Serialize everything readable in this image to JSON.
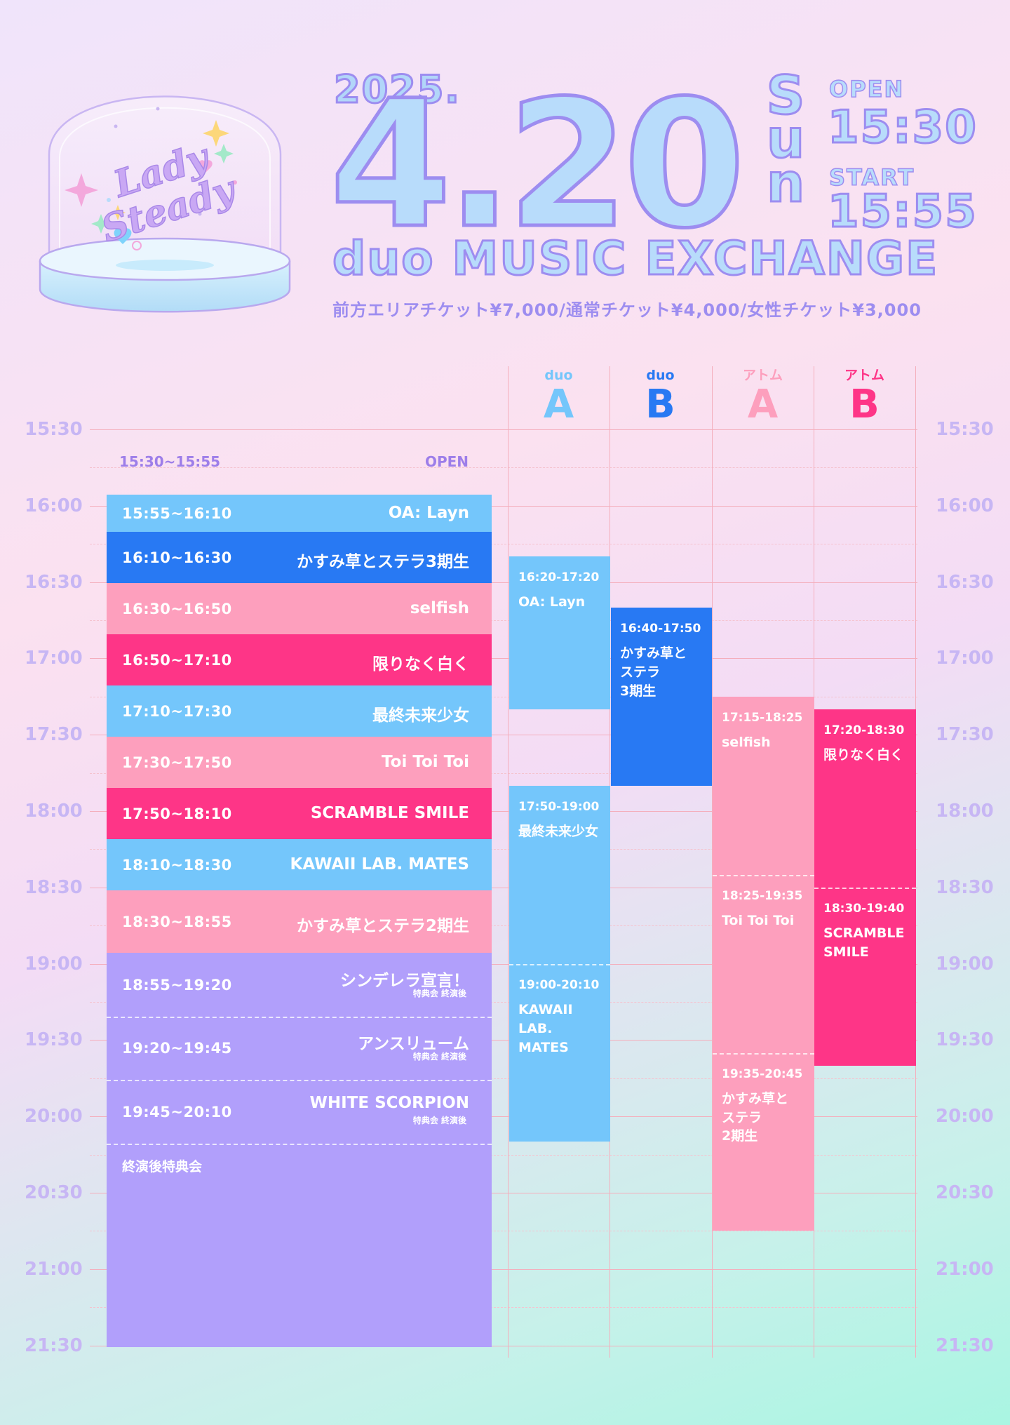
{
  "logo_text": "Lady Steady",
  "header": {
    "year": "2025.",
    "month_day": "4.20",
    "day_of_week": [
      "S",
      "u",
      "n"
    ],
    "open_label": "OPEN",
    "open_time": "15:30",
    "start_label": "START",
    "start_time": "15:55",
    "venue": "duo MUSIC EXCHANGE",
    "tickets": "前方エリアチケット¥7,000/通常チケット¥4,000/女性チケット¥3,000"
  },
  "colors": {
    "sky": "#74c6fb",
    "blue": "#2879f3",
    "pink": "#fd9fbd",
    "hot_pink": "#fe3587",
    "purple": "#b19ffb",
    "grid": "#f4aebc",
    "time_label": "#c7b6f4"
  },
  "time_labels": [
    "15:30",
    "16:00",
    "16:30",
    "17:00",
    "17:30",
    "18:00",
    "18:30",
    "19:00",
    "19:30",
    "20:00",
    "20:30",
    "21:00",
    "21:30"
  ],
  "stages": [
    {
      "venue": "duo",
      "name": "A",
      "color": "#74c6fb"
    },
    {
      "venue": "duo",
      "name": "B",
      "color": "#2879f3"
    },
    {
      "venue": "アトム",
      "name": "A",
      "color": "#fd9fbd"
    },
    {
      "venue": "アトム",
      "name": "B",
      "color": "#fe3587"
    }
  ],
  "open_row": {
    "time": "15:30~15:55",
    "label": "OPEN"
  },
  "main_stage": [
    {
      "time": "15:55~16:10",
      "name": "OA: Layn",
      "color": "sky"
    },
    {
      "time": "16:10~16:30",
      "name": "かすみ草とステラ3期生",
      "color": "blue"
    },
    {
      "time": "16:30~16:50",
      "name": "selfish",
      "color": "pink"
    },
    {
      "time": "16:50~17:10",
      "name": "限りなく白く",
      "color": "hot"
    },
    {
      "time": "17:10~17:30",
      "name": "最終未来少女",
      "color": "sky"
    },
    {
      "time": "17:30~17:50",
      "name": "Toi Toi Toi",
      "color": "pink"
    },
    {
      "time": "17:50~18:10",
      "name": "SCRAMBLE SMILE",
      "color": "hot"
    },
    {
      "time": "18:10~18:30",
      "name": "KAWAII LAB. MATES",
      "color": "sky"
    },
    {
      "time": "18:30~18:55",
      "name": "かすみ草とステラ2期生",
      "color": "pink"
    },
    {
      "time": "18:55~19:20",
      "name": "シンデレラ宣言！",
      "note": "特典会 終演後",
      "color": "purple"
    },
    {
      "time": "19:20~19:45",
      "name": "アンスリューム",
      "note": "特典会 終演後",
      "color": "purple"
    },
    {
      "time": "19:45~20:10",
      "name": "WHITE SCORPION",
      "note": "特典会 終演後",
      "color": "purple"
    },
    {
      "time": "",
      "name": "終演後特典会",
      "color": "purple"
    }
  ],
  "stage_sessions": {
    "duo_a": [
      {
        "time": "16:20-17:20",
        "name": "OA: Layn"
      },
      {
        "time": "17:50-19:00",
        "name": "最終未来少女"
      },
      {
        "time": "19:00-20:10",
        "name": "KAWAII LAB. MATES",
        "lines": [
          "KAWAII",
          "LAB.",
          "MATES"
        ]
      }
    ],
    "duo_b": [
      {
        "time": "16:40-17:50",
        "name": "かすみ草とステラ3期生",
        "lines": [
          "かすみ草と",
          "ステラ",
          "3期生"
        ]
      }
    ],
    "atom_a": [
      {
        "time": "17:15-18:25",
        "name": "selfish"
      },
      {
        "time": "18:25-19:35",
        "name": "Toi Toi Toi"
      },
      {
        "time": "19:35-20:45",
        "name": "かすみ草とステラ2期生",
        "lines": [
          "かすみ草と",
          "ステラ",
          "2期生"
        ]
      }
    ],
    "atom_b": [
      {
        "time": "17:20-18:30",
        "name": "限りなく白く"
      },
      {
        "time": "18:30-19:40",
        "name": "SCRAMBLE SMILE",
        "lines": [
          "SCRAMBLE",
          "SMILE"
        ]
      }
    ]
  }
}
